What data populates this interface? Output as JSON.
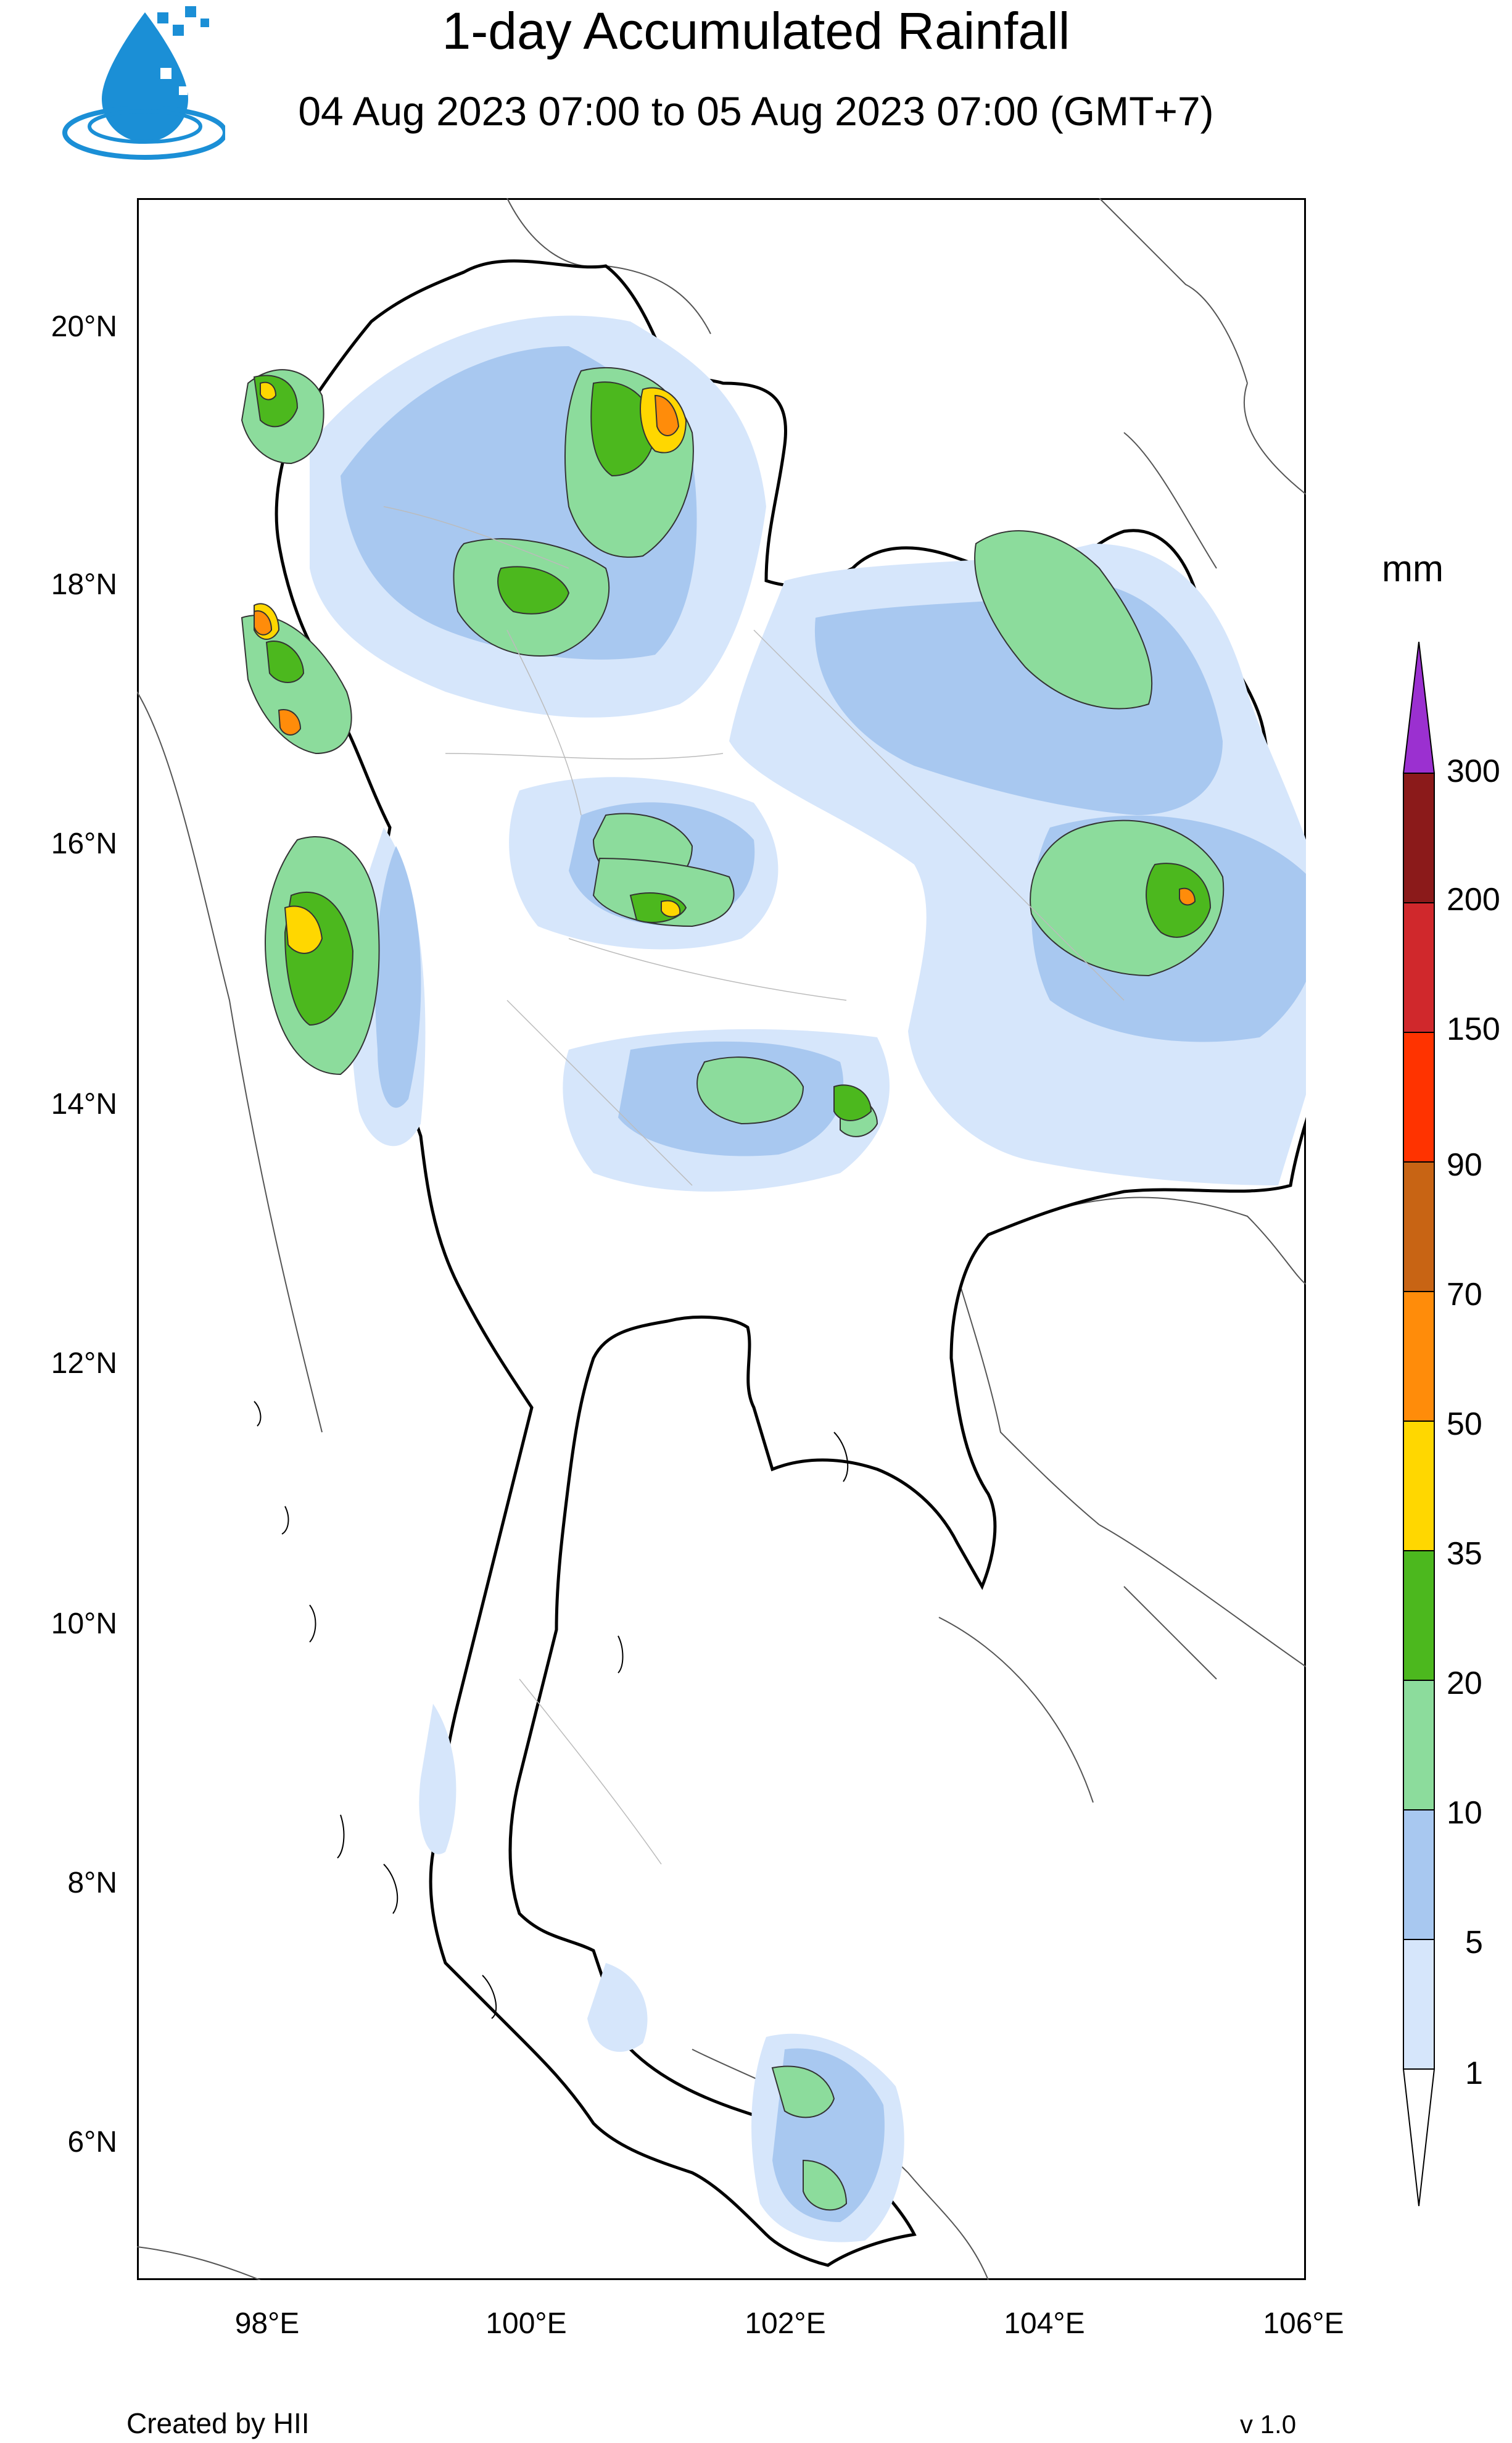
{
  "header": {
    "title": "1-day Accumulated Rainfall",
    "subtitle": "04 Aug 2023 07:00 to 05 Aug 2023 07:00 (GMT+7)"
  },
  "logo": {
    "icon": "water-drop-logo-icon",
    "color": "#1b8fd6"
  },
  "axes": {
    "lat_labels": [
      "20°N",
      "18°N",
      "16°N",
      "14°N",
      "12°N",
      "10°N",
      "8°N",
      "6°N"
    ],
    "lon_labels": [
      "98°E",
      "100°E",
      "102°E",
      "104°E",
      "106°E"
    ]
  },
  "colorbar": {
    "unit": "mm",
    "labels": [
      "300",
      "200",
      "150",
      "90",
      "70",
      "50",
      "35",
      "20",
      "10",
      "5",
      "1"
    ],
    "colors": [
      "#9b30d0",
      "#8b1a1a",
      "#d0282c",
      "#ff3300",
      "#c86414",
      "#ff8c0a",
      "#ffd700",
      "#4cb81e",
      "#8cdc9c",
      "#a8c8f0",
      "#d6e6fb",
      "#ffffff"
    ]
  },
  "footer": {
    "created_by": "Created by HII",
    "version": "v 1.0"
  }
}
